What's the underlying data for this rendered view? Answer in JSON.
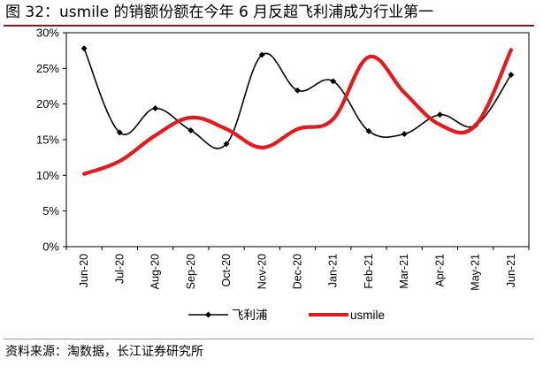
{
  "header": {
    "title": "图 32：usmile 的销额份额在今年 6 月反超飞利浦成为行业第一"
  },
  "footer": {
    "source": "资料来源：淘数据，长江证券研究所"
  },
  "chart_data": {
    "type": "line",
    "title": "",
    "xlabel": "",
    "ylabel": "",
    "ylim": [
      0,
      30
    ],
    "ytick_labels": [
      "0%",
      "5%",
      "10%",
      "15%",
      "20%",
      "25%",
      "30%"
    ],
    "categories": [
      "Jun-20",
      "Jul-20",
      "Aug-20",
      "Sep-20",
      "Oct-20",
      "Nov-20",
      "Dec-20",
      "Jan-21",
      "Feb-21",
      "Mar-21",
      "Apr-21",
      "May-21",
      "Jun-21"
    ],
    "series": [
      {
        "name": "飞利浦",
        "color": "#000000",
        "marker": "diamond",
        "values": [
          27.8,
          16.0,
          19.4,
          16.3,
          14.4,
          26.9,
          21.9,
          23.2,
          16.2,
          15.8,
          18.5,
          17.0,
          24.1
        ]
      },
      {
        "name": "usmile",
        "color": "#e41a1c",
        "marker": "none",
        "values": [
          10.2,
          12.0,
          15.6,
          18.1,
          16.5,
          13.9,
          16.5,
          17.9,
          26.6,
          21.6,
          17.1,
          17.0,
          27.6
        ]
      }
    ],
    "grid": false,
    "legend": "bottom-center"
  }
}
